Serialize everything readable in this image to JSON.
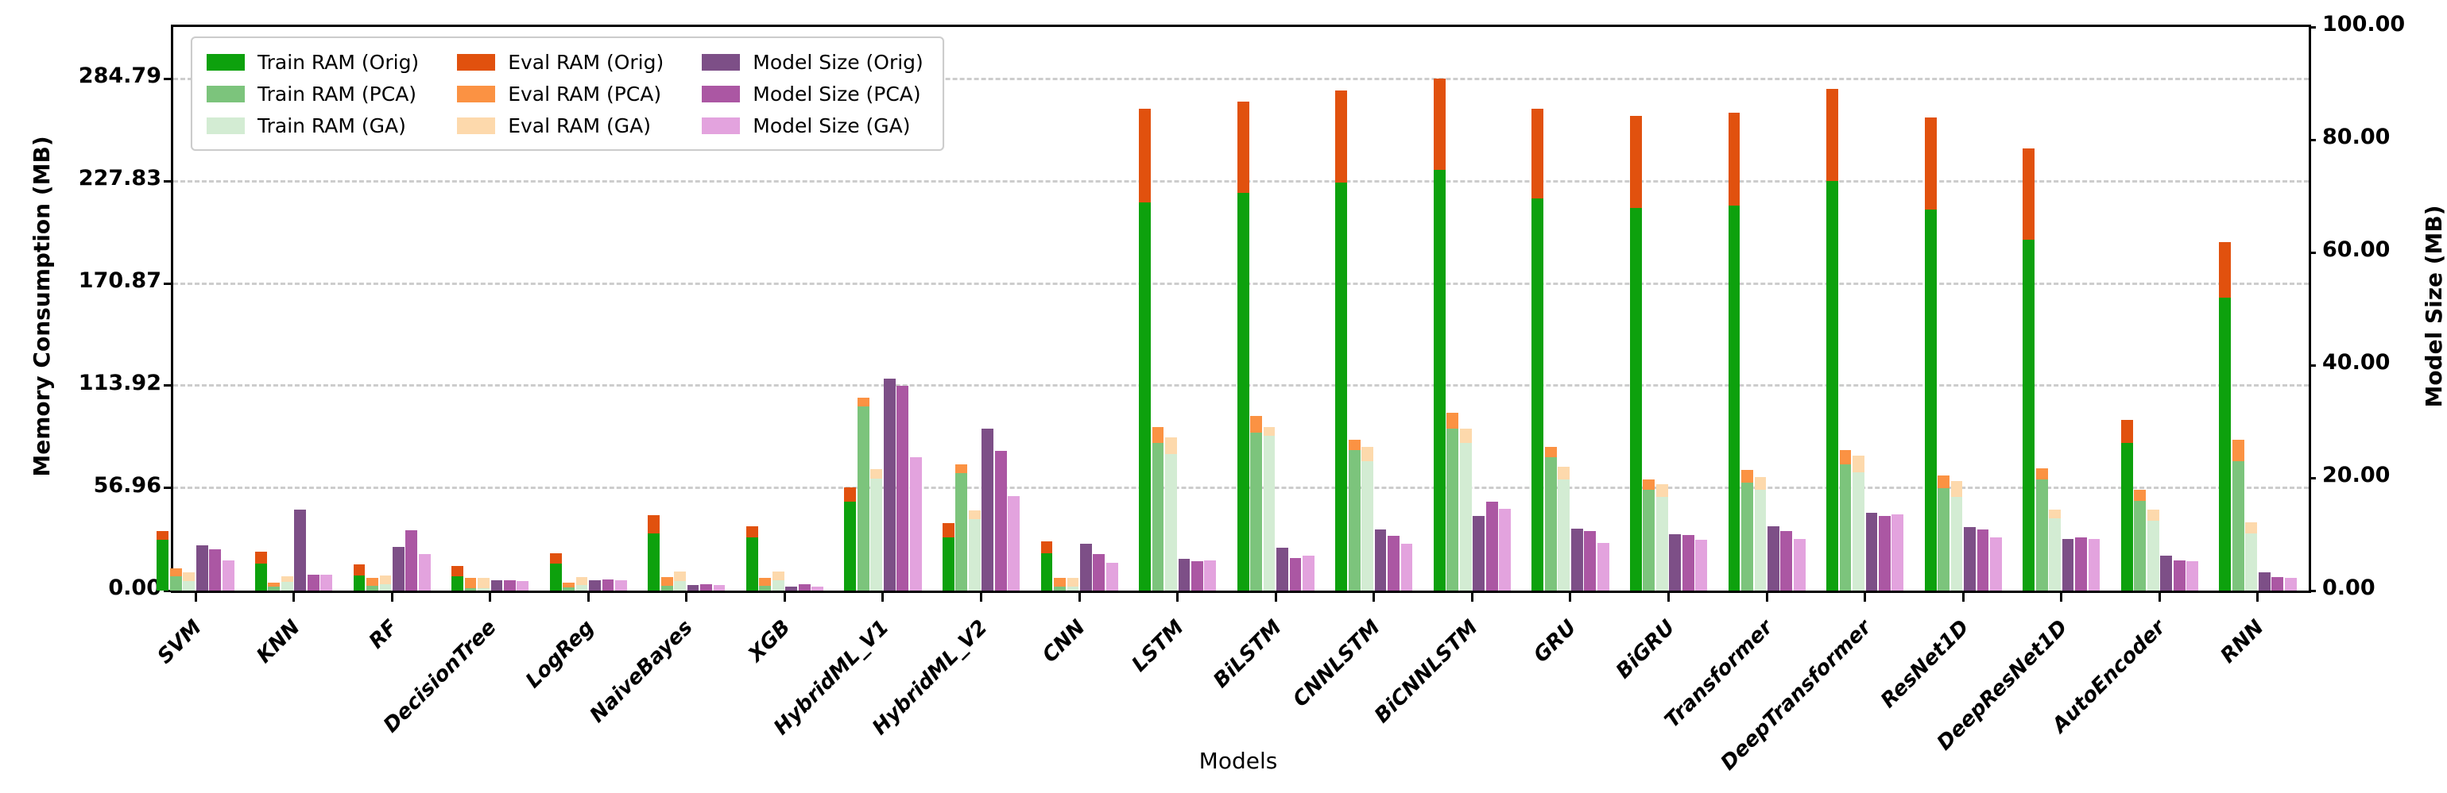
{
  "chart_data": {
    "type": "bar",
    "title": "",
    "xlabel": "Models",
    "ylabel_left": "Memory Consumption (MB)",
    "ylabel_right": "Model Size (MB)",
    "ylim_left": [
      0,
      313.5
    ],
    "ylim_right": [
      0,
      100
    ],
    "grid": "horizontal dashed gridlines at left-axis tick values",
    "legend_position": "upper left",
    "background": "#ffffff",
    "left_ticks": [
      {
        "label": "0.00",
        "value": 0
      },
      {
        "label": "56.96",
        "value": 56.96
      },
      {
        "label": "113.92",
        "value": 113.92
      },
      {
        "label": "170.87",
        "value": 170.87
      },
      {
        "label": "227.83",
        "value": 227.83
      },
      {
        "label": "284.79",
        "value": 284.79
      }
    ],
    "right_ticks": [
      {
        "label": "0.00",
        "value": 0
      },
      {
        "label": "20.00",
        "value": 20
      },
      {
        "label": "40.00",
        "value": 40
      },
      {
        "label": "60.00",
        "value": 60
      },
      {
        "label": "80.00",
        "value": 80
      },
      {
        "label": "100.00",
        "value": 100
      }
    ],
    "categories": [
      "SVM",
      "KNN",
      "RF",
      "DecisionTree",
      "LogReg",
      "NaiveBayes",
      "XGB",
      "HybridML_V1",
      "HybridML_V2",
      "CNN",
      "LSTM",
      "BiLSTM",
      "CNNLSTM",
      "BiCNNLSTM",
      "GRU",
      "BiGRU",
      "Transformer",
      "DeepTransformer",
      "ResNet1D",
      "DeepResNet1D",
      "AutoEncoder",
      "RNN"
    ],
    "stacking_note": "Each variant (Orig/PCA/GA) RAM bar is a stack: Train RAM segment on bottom, Eval RAM segment on top (total height = train + eval). Model Size bars are plotted on the right axis.",
    "series": [
      {
        "name": "Train RAM (Orig)",
        "color": "#0da10d",
        "axis": "left",
        "role": "train",
        "variant": "orig",
        "values": [
          28.3,
          15.0,
          8.4,
          7.9,
          15.0,
          31.8,
          29.6,
          49.5,
          29.6,
          20.8,
          216,
          221,
          227,
          234,
          218,
          213,
          214,
          228,
          212,
          195,
          82,
          163
        ]
      },
      {
        "name": "Eval RAM (Orig)",
        "color": "#e1510e",
        "axis": "left",
        "role": "eval",
        "variant": "orig",
        "values": [
          4.8,
          6.6,
          6.2,
          5.8,
          5.8,
          10.1,
          6.2,
          7.9,
          7.9,
          6.6,
          52,
          51,
          51,
          50.8,
          50,
          51,
          52,
          51,
          51,
          51,
          13,
          31
        ]
      },
      {
        "name": "Model Size (Orig)",
        "color": "#7d4f87",
        "axis": "right",
        "role": "model_size",
        "variant": "orig",
        "values": [
          8.0,
          14.4,
          7.7,
          1.8,
          1.8,
          1.0,
          0.7,
          37.6,
          28.7,
          8.3,
          5.6,
          7.6,
          10.8,
          13.2,
          11.0,
          10.0,
          11.4,
          13.8,
          11.2,
          9.2,
          6.2,
          3.2
        ]
      },
      {
        "name": "Train RAM (PCA)",
        "color": "#7cc47c",
        "axis": "left",
        "role": "train",
        "variant": "pca",
        "values": [
          7.9,
          2.2,
          2.6,
          1.3,
          1.8,
          2.6,
          2.6,
          102.4,
          65.3,
          2.2,
          82,
          88,
          78,
          90,
          74,
          56,
          60,
          70,
          57,
          62,
          50,
          72
        ]
      },
      {
        "name": "Eval RAM (PCA)",
        "color": "#fb9243",
        "axis": "left",
        "role": "eval",
        "variant": "pca",
        "values": [
          4.5,
          2.2,
          4.5,
          5.8,
          2.6,
          4.9,
          4.5,
          4.9,
          4.9,
          4.9,
          9,
          9,
          6,
          9,
          6,
          6,
          7,
          8,
          7,
          6,
          6,
          12
        ]
      },
      {
        "name": "Model Size (PCA)",
        "color": "#ab57a3",
        "axis": "right",
        "role": "model_size",
        "variant": "pca",
        "values": [
          7.3,
          2.8,
          10.7,
          1.8,
          2.0,
          1.1,
          1.1,
          36.3,
          24.8,
          6.5,
          5.2,
          5.8,
          9.7,
          15.8,
          10.5,
          9.8,
          10.5,
          13.2,
          10.9,
          9.5,
          5.4,
          2.4
        ]
      },
      {
        "name": "Train RAM (GA)",
        "color": "#d3ecd3",
        "axis": "left",
        "role": "train",
        "variant": "ga",
        "values": [
          5.3,
          4.9,
          3.5,
          1.3,
          3.1,
          5.3,
          5.7,
          62.3,
          39.7,
          2.2,
          76,
          86,
          72,
          82,
          62,
          52,
          56,
          66,
          52,
          40,
          39,
          32
        ]
      },
      {
        "name": "Eval RAM (GA)",
        "color": "#fdd9ac",
        "axis": "left",
        "role": "eval",
        "variant": "ga",
        "values": [
          4.9,
          3.0,
          4.9,
          5.8,
          4.4,
          5.3,
          4.9,
          5.3,
          4.9,
          4.9,
          9,
          5,
          8,
          8,
          7,
          7,
          7,
          9,
          9,
          5,
          6,
          6
        ]
      },
      {
        "name": "Model Size (GA)",
        "color": "#e3a3de",
        "axis": "right",
        "role": "model_size",
        "variant": "ga",
        "values": [
          5.4,
          2.8,
          6.5,
          1.7,
          1.8,
          1.0,
          0.7,
          23.7,
          16.8,
          4.9,
          5.4,
          6.2,
          8.3,
          14.5,
          8.5,
          9.0,
          9.2,
          13.5,
          9.4,
          9.2,
          5.2,
          2.2
        ]
      }
    ],
    "legend_order": [
      "Train RAM (Orig)",
      "Eval RAM (Orig)",
      "Model Size (Orig)",
      "Train RAM (PCA)",
      "Eval RAM (PCA)",
      "Model Size (PCA)",
      "Train RAM (GA)",
      "Eval RAM (GA)",
      "Model Size (GA)"
    ]
  },
  "layout_colors": {
    "gridline": "#cdcdcd",
    "spine": "#000000",
    "background": "#ffffff"
  }
}
